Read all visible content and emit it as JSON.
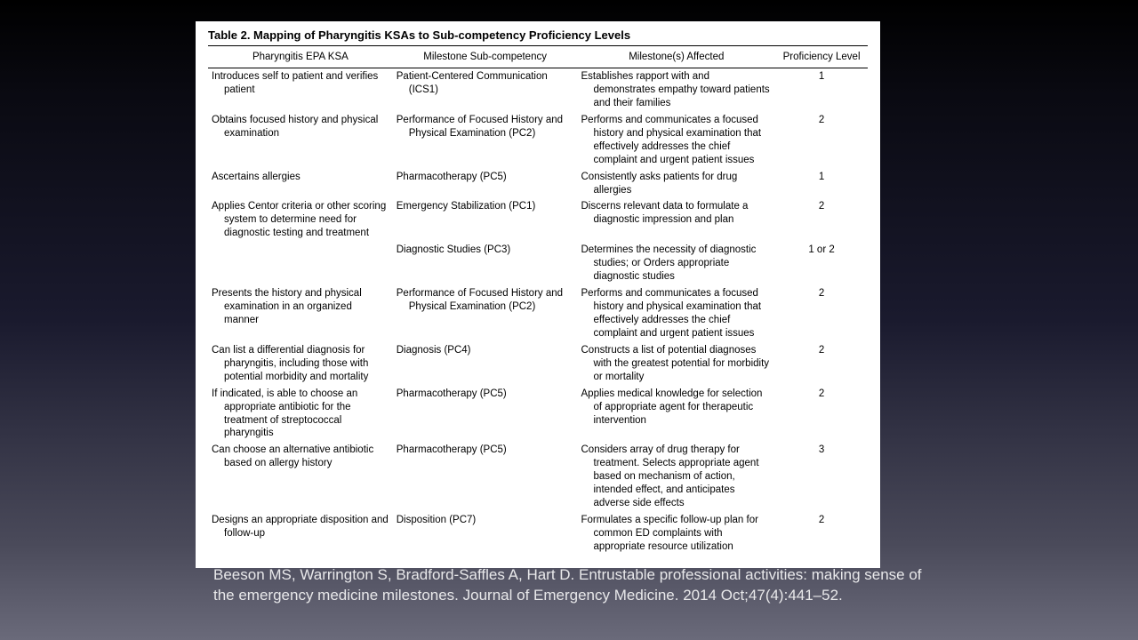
{
  "table": {
    "title": "Table 2.  Mapping of Pharyngitis KSAs to Sub-competency Proficiency Levels",
    "columns": [
      "Pharyngitis EPA KSA",
      "Milestone Sub-competency",
      "Milestone(s) Affected",
      "Proficiency Level"
    ],
    "rows": [
      {
        "ksa": "Introduces self to patient and verifies patient",
        "sub": "Patient-Centered Communication (ICS1)",
        "affected": "Establishes rapport with and demonstrates empathy toward patients and their families",
        "level": "1"
      },
      {
        "ksa": "Obtains focused history and physical examination",
        "sub": "Performance of Focused History and Physical Examination (PC2)",
        "affected": "Performs and communicates a focused history and physical examination that effectively addresses the chief complaint and urgent patient issues",
        "level": "2"
      },
      {
        "ksa": "Ascertains allergies",
        "sub": "Pharmacotherapy (PC5)",
        "affected": "Consistently asks patients for drug allergies",
        "level": "1"
      },
      {
        "ksa": "Applies Centor criteria or other scoring system to determine need for diagnostic testing and treatment",
        "sub": "Emergency Stabilization (PC1)",
        "affected": "Discerns relevant data to formulate a diagnostic impression and plan",
        "level": "2"
      },
      {
        "ksa": "",
        "sub": "Diagnostic Studies (PC3)",
        "affected": "Determines the necessity of diagnostic studies; or Orders appropriate diagnostic studies",
        "level": "1 or 2"
      },
      {
        "ksa": "Presents the history and physical examination in an organized manner",
        "sub": "Performance of Focused History and Physical Examination (PC2)",
        "affected": "Performs and communicates a focused history and physical examination that effectively addresses the chief complaint and urgent patient issues",
        "level": "2"
      },
      {
        "ksa": "Can list a differential diagnosis for pharyngitis, including those with potential morbidity and mortality",
        "sub": "Diagnosis (PC4)",
        "affected": "Constructs a list of potential diagnoses with the greatest potential for morbidity or mortality",
        "level": "2"
      },
      {
        "ksa": "If indicated, is able to choose an appropriate antibiotic for the treatment of streptococcal pharyngitis",
        "sub": "Pharmacotherapy (PC5)",
        "affected": "Applies medical knowledge for selection of appropriate agent for therapeutic intervention",
        "level": "2"
      },
      {
        "ksa": "Can choose an alternative antibiotic based on allergy history",
        "sub": "Pharmacotherapy (PC5)",
        "affected": "Considers array of drug therapy for treatment. Selects appropriate agent based on mechanism of action, intended effect, and anticipates adverse side effects",
        "level": "3"
      },
      {
        "ksa": "Designs an appropriate disposition and follow-up",
        "sub": "Disposition (PC7)",
        "affected": "Formulates a specific follow-up plan for common ED complaints with appropriate resource utilization",
        "level": "2"
      }
    ]
  },
  "citation": "Beeson MS, Warrington S, Bradford-Saffles A, Hart D. Entrustable professional activities: making sense of the emergency medicine milestones. Journal of Emergency Medicine. 2014 Oct;47(4):441–52."
}
